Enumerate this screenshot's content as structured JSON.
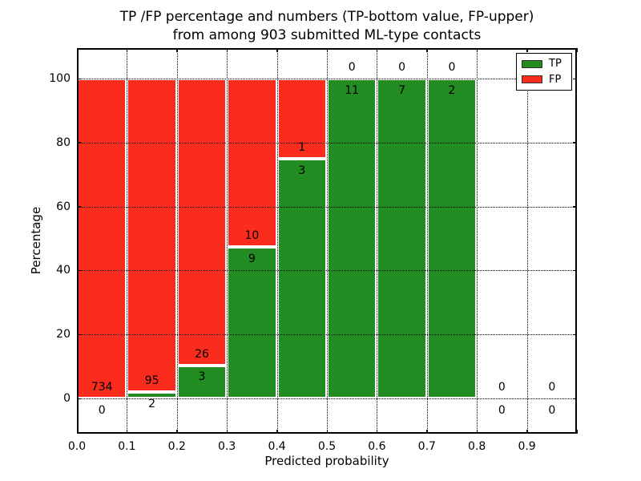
{
  "chart_data": {
    "type": "bar",
    "stacked": true,
    "normalized": "percent",
    "title_line1": "TP /FP percentage and numbers (TP-bottom value, FP-upper)",
    "title_line2": "from among 903 submitted ML-type contacts",
    "xlabel": "Predicted probability",
    "ylabel": "Percentage",
    "total_contacts": 903,
    "bin_width": 0.1,
    "bin_starts": [
      0.0,
      0.1,
      0.2,
      0.3,
      0.4,
      0.5,
      0.6,
      0.7,
      0.8,
      0.9
    ],
    "xtick_labels": [
      "0.0",
      "0.1",
      "0.2",
      "0.3",
      "0.4",
      "0.5",
      "0.6",
      "0.7",
      "0.8",
      "0.9"
    ],
    "ytick_values": [
      0,
      20,
      40,
      60,
      80,
      100
    ],
    "xlim": [
      0.0,
      1.0
    ],
    "ylim": [
      -11,
      109.6
    ],
    "series": [
      {
        "name": "TP",
        "color": "#228b22",
        "counts": [
          0,
          2,
          3,
          9,
          3,
          11,
          7,
          2,
          0,
          0
        ]
      },
      {
        "name": "FP",
        "color": "#f92c1e",
        "counts": [
          734,
          95,
          26,
          10,
          1,
          0,
          0,
          0,
          0,
          0
        ]
      }
    ],
    "tp_percent_of_bin": [
      0,
      2.1,
      10.3,
      47.4,
      75,
      100,
      100,
      100,
      null,
      null
    ],
    "grid": {
      "style": "dotted",
      "color": "#000000",
      "drawn_above_bars": true
    },
    "bar_edge_color": "#ffffff",
    "legend": {
      "position": "upper right",
      "entries": [
        {
          "label": "TP",
          "color": "#228b22"
        },
        {
          "label": "FP",
          "color": "#f92c1e"
        }
      ]
    },
    "annotation_rule": "FP count shown just above the TP/FP boundary of each bar, TP count just below it"
  }
}
